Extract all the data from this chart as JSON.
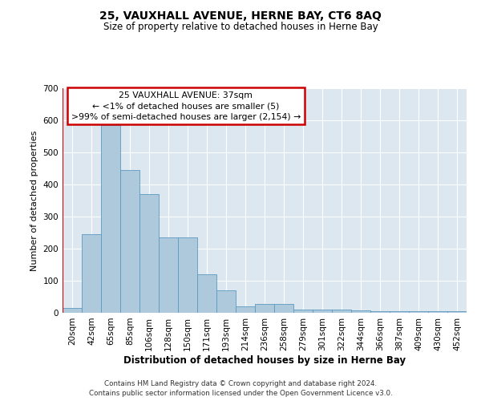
{
  "title1": "25, VAUXHALL AVENUE, HERNE BAY, CT6 8AQ",
  "title2": "Size of property relative to detached houses in Herne Bay",
  "xlabel": "Distribution of detached houses by size in Herne Bay",
  "ylabel": "Number of detached properties",
  "categories": [
    "20sqm",
    "42sqm",
    "65sqm",
    "85sqm",
    "106sqm",
    "128sqm",
    "150sqm",
    "171sqm",
    "193sqm",
    "214sqm",
    "236sqm",
    "258sqm",
    "279sqm",
    "301sqm",
    "322sqm",
    "344sqm",
    "366sqm",
    "387sqm",
    "409sqm",
    "430sqm",
    "452sqm"
  ],
  "values": [
    15,
    245,
    585,
    445,
    370,
    235,
    235,
    120,
    70,
    20,
    27,
    27,
    10,
    10,
    10,
    7,
    5,
    5,
    5,
    5,
    5
  ],
  "bar_color": "#aec8dc",
  "bar_edge_color": "#5a9bbf",
  "highlight_color": "#cc0000",
  "ylim": [
    0,
    700
  ],
  "yticks": [
    0,
    100,
    200,
    300,
    400,
    500,
    600,
    700
  ],
  "grid_color": "#ffffff",
  "background_color": "#dce7f0",
  "box_text_line1": "25 VAUXHALL AVENUE: 37sqm",
  "box_text_line2": "← <1% of detached houses are smaller (5)",
  "box_text_line3": ">99% of semi-detached houses are larger (2,154) →",
  "box_color": "#cc0000",
  "footer_line1": "Contains HM Land Registry data © Crown copyright and database right 2024.",
  "footer_line2": "Contains public sector information licensed under the Open Government Licence v3.0."
}
